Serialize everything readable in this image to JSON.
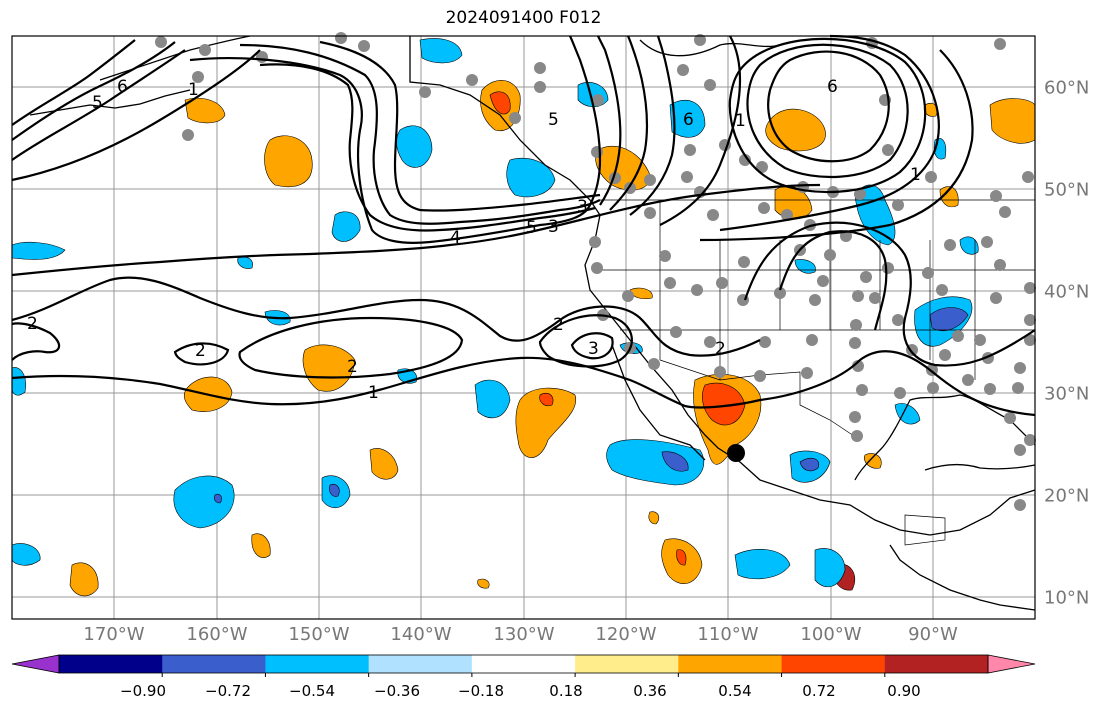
{
  "title": "2024091400 F012",
  "lon_labels": [
    "170°W",
    "160°W",
    "150°W",
    "140°W",
    "130°W",
    "120°W",
    "110°W",
    "100°W",
    "90°W"
  ],
  "lat_labels": [
    "60°N",
    "50°N",
    "40°N",
    "30°N",
    "20°N",
    "10°N"
  ],
  "colorbar": {
    "ticks": [
      "−0.90",
      "−0.72",
      "−0.54",
      "−0.36",
      "−0.18",
      "0.18",
      "0.36",
      "0.54",
      "0.72",
      "0.90"
    ],
    "colors": [
      "#9932cc",
      "#00008b",
      "#3a5fcd",
      "#00bfff",
      "#b0e2ff",
      "#ffffff",
      "#ffec8b",
      "#ffa500",
      "#ff4500",
      "#b22222",
      "#ff88aa"
    ]
  },
  "contour_labels": [
    "1",
    "2",
    "2",
    "2",
    "3",
    "4",
    "5",
    "6",
    "5",
    "6",
    "1",
    "2",
    "3",
    "1",
    "1",
    "2",
    "3",
    "5",
    "6"
  ],
  "palette": {
    "orange": "#ffa500",
    "red": "#ff4500",
    "deepskyblue": "#00bfff",
    "royalblue": "#3a5fcd",
    "yellow": "#ffec8b"
  }
}
